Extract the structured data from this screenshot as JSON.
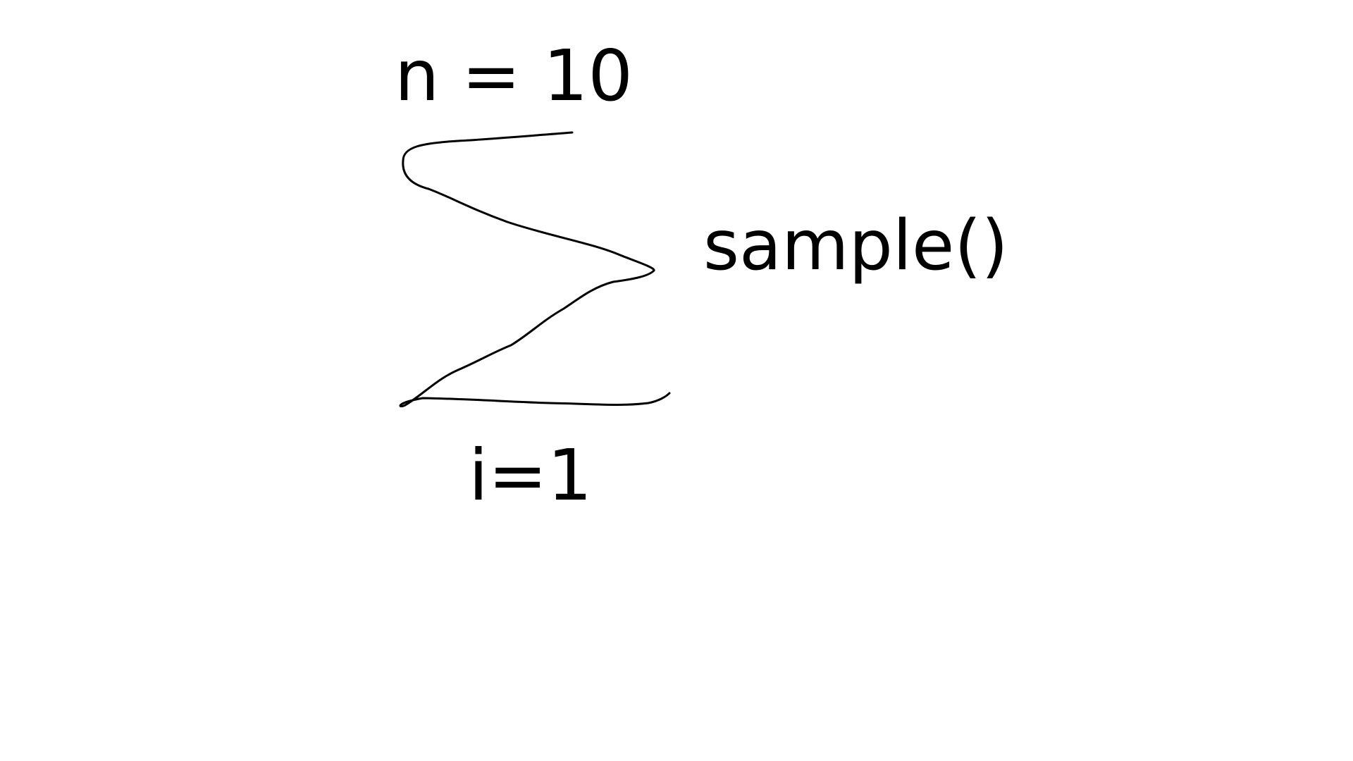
{
  "formula": {
    "upper_limit": "n = 10",
    "lower_limit": "i=1",
    "summand": "sample()"
  },
  "colors": {
    "background": "#ffffff",
    "ink": "#000000"
  }
}
